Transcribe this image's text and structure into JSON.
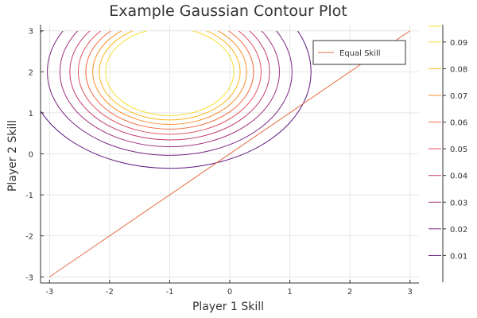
{
  "chart_data": {
    "type": "contour",
    "title": "Example Gaussian Contour Plot",
    "xlabel": "Player 1 Skill",
    "ylabel": "Player 2 Skill",
    "xlim": [
      -3.15,
      3.15
    ],
    "ylim": [
      -3.15,
      3.15
    ],
    "xticks": [
      -3,
      -2,
      -1,
      0,
      1,
      2,
      3
    ],
    "yticks": [
      -3,
      -2,
      -1,
      0,
      1,
      2,
      3
    ],
    "grid": true,
    "gaussian": {
      "mean": [
        -1,
        2
      ],
      "sigma": 1
    },
    "contour_levels": [
      0.01,
      0.02,
      0.03,
      0.04,
      0.05,
      0.06,
      0.07,
      0.08,
      0.09
    ],
    "colorbar": {
      "min": 0.0,
      "max": 0.0965,
      "ticks": [
        0.01,
        0.02,
        0.03,
        0.04,
        0.05,
        0.06,
        0.07,
        0.08,
        0.09
      ],
      "tick_labels": [
        "0.01",
        "0.02",
        "0.03",
        "0.04",
        "0.05",
        "0.06",
        "0.07",
        "0.08",
        "0.09"
      ]
    },
    "series": [
      {
        "name": "Equal Skill",
        "x": [
          -3,
          3
        ],
        "y": [
          -3,
          3
        ],
        "color": "#e26f46"
      }
    ],
    "legend_position": "top-right",
    "colors": {
      "contours": [
        "#5c157e",
        "#7e2482",
        "#a1307e",
        "#c33c73",
        "#df5260",
        "#f06e44",
        "#f9902a",
        "#fbb61a",
        "#f5de35"
      ]
    }
  }
}
